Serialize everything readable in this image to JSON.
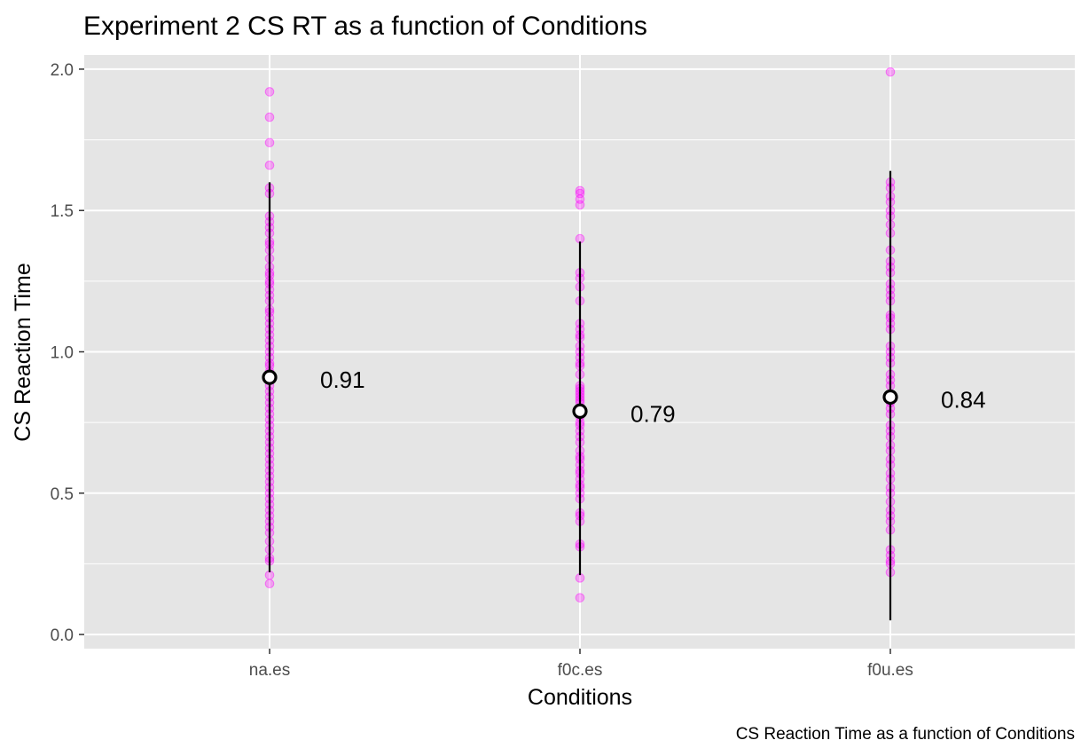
{
  "chart_data": {
    "type": "scatter",
    "title": "Experiment 2 CS RT as a function of Conditions",
    "caption": "CS Reaction Time as a function of Conditions",
    "xlabel": "Conditions",
    "ylabel": "CS Reaction Time",
    "ylim": [
      -0.05,
      2.05
    ],
    "yticks": [
      0.0,
      0.5,
      1.0,
      1.5,
      2.0
    ],
    "ytick_labels": [
      "0.0",
      "0.5",
      "1.0",
      "1.5",
      "2.0"
    ],
    "categories": [
      "na.es",
      "f0c.es",
      "f0u.es"
    ],
    "grid": true,
    "colors": {
      "panel_background": "#e5e5e5",
      "grid": "#ffffff",
      "points": "#ff00ff",
      "interval": "#000000",
      "mean_marker_fill": "#ffffff",
      "mean_marker_stroke": "#000000"
    },
    "series": [
      {
        "category": "na.es",
        "mean": 0.91,
        "mean_label": "0.91",
        "interval": [
          0.22,
          1.6
        ],
        "points": [
          1.92,
          1.83,
          1.74,
          1.66,
          1.58,
          1.56,
          1.48,
          1.46,
          1.44,
          1.42,
          1.39,
          1.38,
          1.36,
          1.33,
          1.3,
          1.28,
          1.27,
          1.25,
          1.24,
          1.22,
          1.2,
          1.18,
          1.15,
          1.14,
          1.12,
          1.1,
          1.08,
          1.06,
          1.04,
          1.02,
          1.0,
          0.98,
          0.96,
          0.95,
          0.93,
          0.91,
          0.9,
          0.88,
          0.86,
          0.84,
          0.82,
          0.8,
          0.78,
          0.76,
          0.74,
          0.72,
          0.7,
          0.68,
          0.66,
          0.64,
          0.62,
          0.6,
          0.58,
          0.56,
          0.54,
          0.52,
          0.5,
          0.48,
          0.46,
          0.44,
          0.42,
          0.4,
          0.38,
          0.36,
          0.33,
          0.3,
          0.27,
          0.26,
          0.21,
          0.18
        ]
      },
      {
        "category": "f0c.es",
        "mean": 0.79,
        "mean_label": "0.79",
        "interval": [
          0.21,
          1.39
        ],
        "points": [
          1.57,
          1.56,
          1.54,
          1.52,
          1.4,
          1.28,
          1.26,
          1.23,
          1.18,
          1.1,
          1.08,
          1.06,
          1.05,
          1.02,
          1.0,
          0.98,
          0.96,
          0.95,
          0.92,
          0.88,
          0.87,
          0.86,
          0.85,
          0.84,
          0.83,
          0.82,
          0.8,
          0.78,
          0.77,
          0.75,
          0.74,
          0.72,
          0.7,
          0.68,
          0.65,
          0.63,
          0.62,
          0.6,
          0.58,
          0.57,
          0.55,
          0.53,
          0.52,
          0.5,
          0.48,
          0.43,
          0.42,
          0.4,
          0.32,
          0.31,
          0.2,
          0.13
        ]
      },
      {
        "category": "f0u.es",
        "mean": 0.84,
        "mean_label": "0.84",
        "interval": [
          0.05,
          1.64
        ],
        "points": [
          1.99,
          1.6,
          1.58,
          1.55,
          1.53,
          1.5,
          1.48,
          1.45,
          1.42,
          1.36,
          1.32,
          1.3,
          1.28,
          1.24,
          1.22,
          1.2,
          1.18,
          1.13,
          1.12,
          1.1,
          1.08,
          1.02,
          1.0,
          0.98,
          0.96,
          0.92,
          0.9,
          0.88,
          0.85,
          0.82,
          0.8,
          0.78,
          0.74,
          0.72,
          0.7,
          0.67,
          0.65,
          0.62,
          0.6,
          0.57,
          0.55,
          0.52,
          0.5,
          0.47,
          0.44,
          0.42,
          0.4,
          0.37,
          0.3,
          0.28,
          0.26,
          0.25,
          0.22
        ]
      }
    ]
  }
}
